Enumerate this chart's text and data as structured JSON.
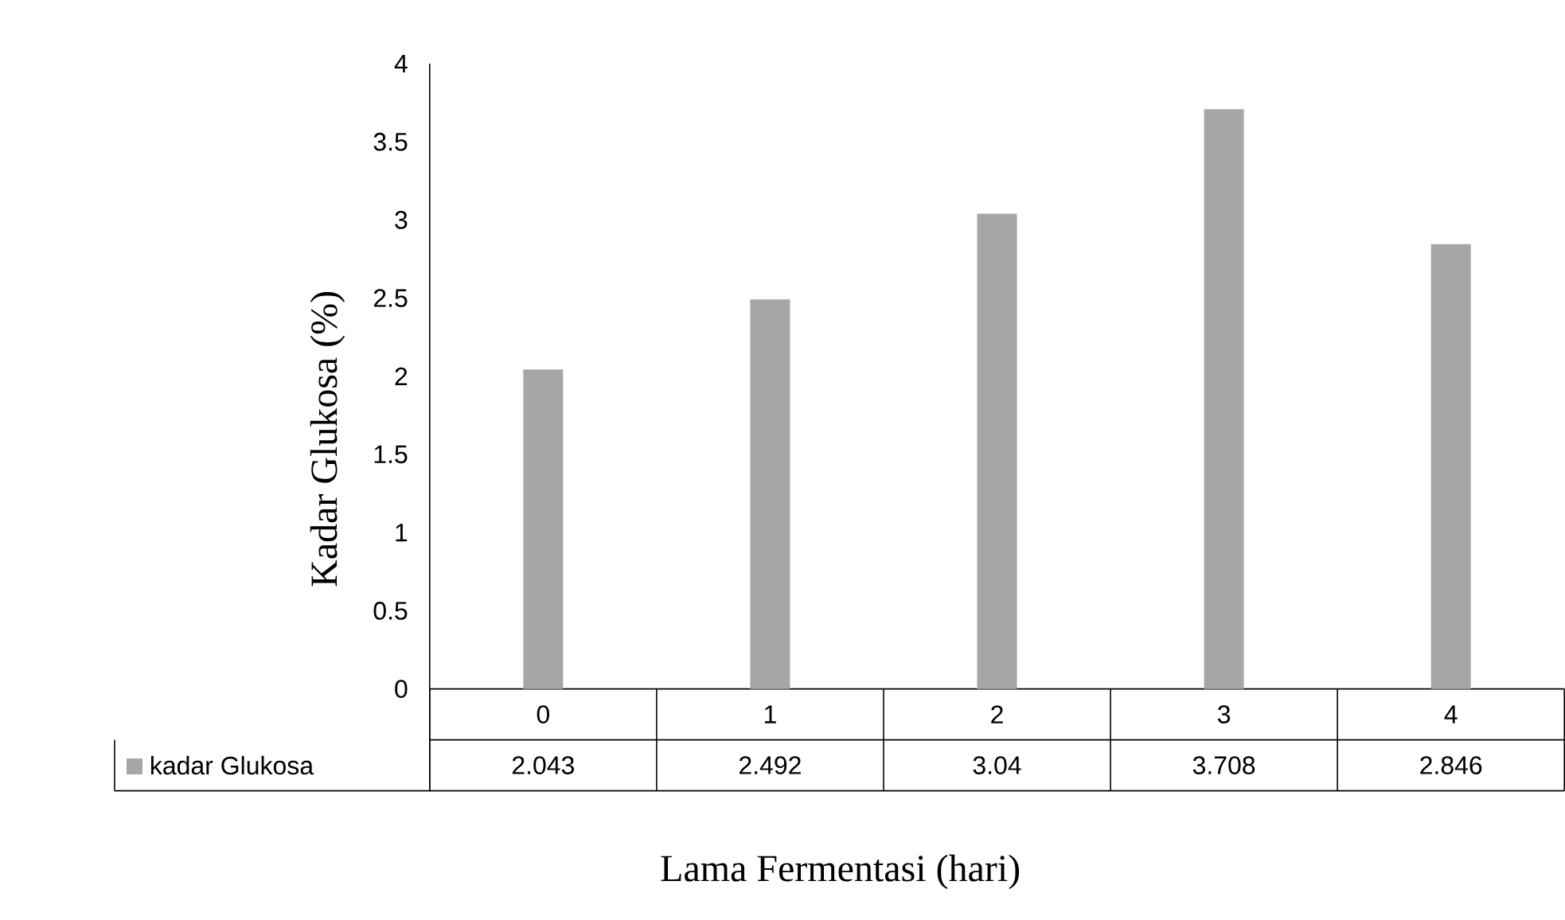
{
  "chart_data": {
    "type": "bar",
    "xlabel": "Lama Fermentasi (hari)",
    "ylabel": "Kadar Glukosa (%)",
    "categories": [
      "0",
      "1",
      "2",
      "3",
      "4"
    ],
    "series": [
      {
        "name": "kadar Glukosa",
        "color": "#a6a6a6",
        "values": [
          2.043,
          2.492,
          3.04,
          3.708,
          2.846
        ]
      }
    ],
    "ylim": [
      0,
      4
    ],
    "yticks": [
      0,
      0.5,
      1,
      1.5,
      2,
      2.5,
      3,
      3.5,
      4
    ],
    "legend": "bottom",
    "data_labels": true
  }
}
